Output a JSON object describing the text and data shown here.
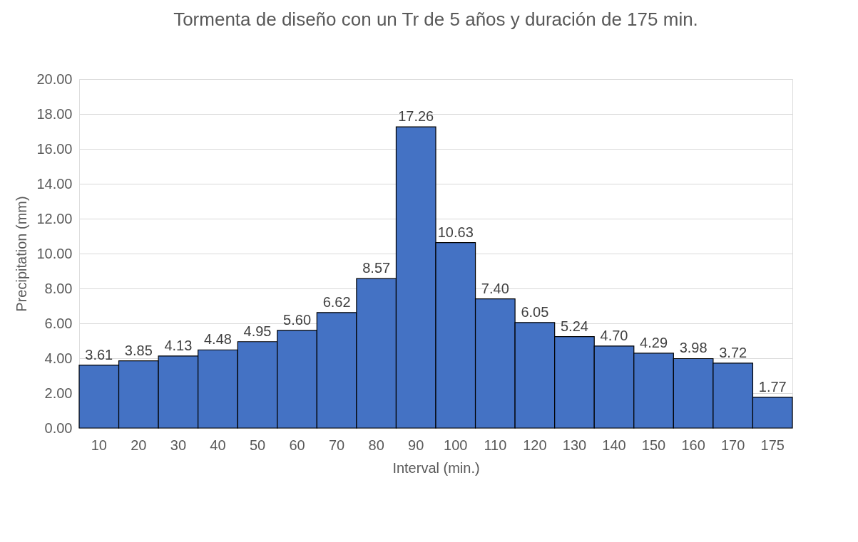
{
  "chart_data": {
    "type": "bar",
    "title": "Tormenta de diseño con un Tr de 5  años y duración de 175 min.",
    "xlabel": "Interval (min.)",
    "ylabel": "Precipitation (mm)",
    "categories": [
      "10",
      "20",
      "30",
      "40",
      "50",
      "60",
      "70",
      "80",
      "90",
      "100",
      "110",
      "120",
      "130",
      "140",
      "150",
      "160",
      "170",
      "175"
    ],
    "values": [
      3.61,
      3.85,
      4.13,
      4.48,
      4.95,
      5.6,
      6.62,
      8.57,
      17.26,
      10.63,
      7.4,
      6.05,
      5.24,
      4.7,
      4.29,
      3.98,
      3.72,
      1.77
    ],
    "color": "#4472c4",
    "ylim": [
      0,
      20
    ],
    "yticks": [
      {
        "value": 0,
        "label": "0.00"
      },
      {
        "value": 2,
        "label": "2.00"
      },
      {
        "value": 4,
        "label": "4.00"
      },
      {
        "value": 6,
        "label": "6.00"
      },
      {
        "value": 8,
        "label": "8.00"
      },
      {
        "value": 10,
        "label": "10.00"
      },
      {
        "value": 12,
        "label": "12.00"
      },
      {
        "value": 14,
        "label": "14.00"
      },
      {
        "value": 16,
        "label": "16.00"
      },
      {
        "value": 18,
        "label": "18.00"
      },
      {
        "value": 20,
        "label": "20.00"
      }
    ],
    "value_labels": [
      "3.61",
      "3.85",
      "4.13",
      "4.48",
      "4.95",
      "5.60",
      "6.62",
      "8.57",
      "17.26",
      "10.63",
      "7.40",
      "6.05",
      "5.24",
      "4.70",
      "4.29",
      "3.98",
      "3.72",
      "1.77"
    ],
    "grid": "y"
  }
}
